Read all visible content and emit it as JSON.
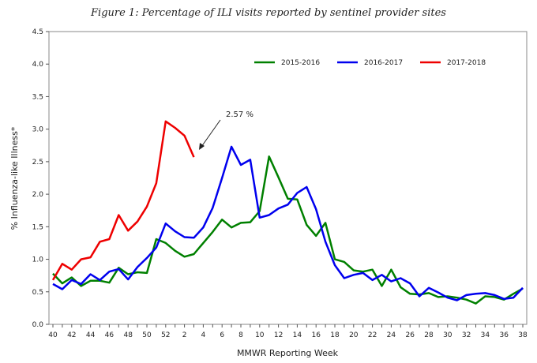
{
  "chart_data": {
    "type": "line",
    "title": "Figure 1: Percentage of ILI visits reported by sentinel provider sites",
    "xlabel": "MMWR Reporting Week",
    "ylabel": "% Influenza-like Illness*",
    "ylim": [
      0,
      4.5
    ],
    "yticks": [
      "0.0",
      "0.5",
      "1.0",
      "1.5",
      "2.0",
      "2.5",
      "3.0",
      "3.5",
      "4.0",
      "4.5"
    ],
    "weeks": [
      40,
      41,
      42,
      43,
      44,
      45,
      46,
      47,
      48,
      49,
      50,
      51,
      52,
      1,
      2,
      3,
      4,
      5,
      6,
      7,
      8,
      9,
      10,
      11,
      12,
      13,
      14,
      15,
      16,
      17,
      18,
      19,
      20,
      21,
      22,
      23,
      24,
      25,
      26,
      27,
      28,
      29,
      30,
      31,
      32,
      33,
      34,
      35,
      36,
      37,
      38
    ],
    "xticks": [
      "40",
      "42",
      "44",
      "46",
      "48",
      "50",
      "52",
      "2",
      "4",
      "6",
      "8",
      "10",
      "12",
      "14",
      "16",
      "18",
      "20",
      "22",
      "24",
      "26",
      "28",
      "30",
      "32",
      "34",
      "36",
      "38"
    ],
    "legend_position": "top-right",
    "series": [
      {
        "name": "2015-2016",
        "color": "#008000",
        "values": [
          0.78,
          0.63,
          0.72,
          0.59,
          0.67,
          0.67,
          0.64,
          0.87,
          0.77,
          0.8,
          0.79,
          1.31,
          1.25,
          1.13,
          1.04,
          1.08,
          1.25,
          1.42,
          1.61,
          1.49,
          1.56,
          1.57,
          1.74,
          2.58,
          2.26,
          1.93,
          1.92,
          1.53,
          1.36,
          1.56,
          1.0,
          0.96,
          0.83,
          0.81,
          0.84,
          0.59,
          0.84,
          0.57,
          0.47,
          0.46,
          0.48,
          0.42,
          0.43,
          0.41,
          0.38,
          0.32,
          0.43,
          0.42,
          0.38,
          0.47,
          0.55
        ]
      },
      {
        "name": "2016-2017",
        "color": "#0000ee",
        "values": [
          0.62,
          0.54,
          0.68,
          0.62,
          0.77,
          0.68,
          0.81,
          0.85,
          0.69,
          0.88,
          1.02,
          1.18,
          1.55,
          1.43,
          1.34,
          1.33,
          1.49,
          1.79,
          2.25,
          2.73,
          2.45,
          2.53,
          1.64,
          1.68,
          1.78,
          1.84,
          2.02,
          2.11,
          1.77,
          1.27,
          0.91,
          0.71,
          0.76,
          0.79,
          0.68,
          0.76,
          0.66,
          0.71,
          0.63,
          0.43,
          0.56,
          0.49,
          0.41,
          0.37,
          0.45,
          0.47,
          0.48,
          0.45,
          0.39,
          0.41,
          0.56
        ]
      },
      {
        "name": "2017-2018",
        "color": "#ee0000",
        "values": [
          0.68,
          0.93,
          0.84,
          1.0,
          1.03,
          1.27,
          1.31,
          1.68,
          1.44,
          1.58,
          1.81,
          2.17,
          3.12,
          3.02,
          2.9,
          2.57
        ]
      }
    ],
    "annotation": {
      "text": "2.57 %",
      "points_to_week": 3,
      "points_to_value": 2.57
    }
  }
}
